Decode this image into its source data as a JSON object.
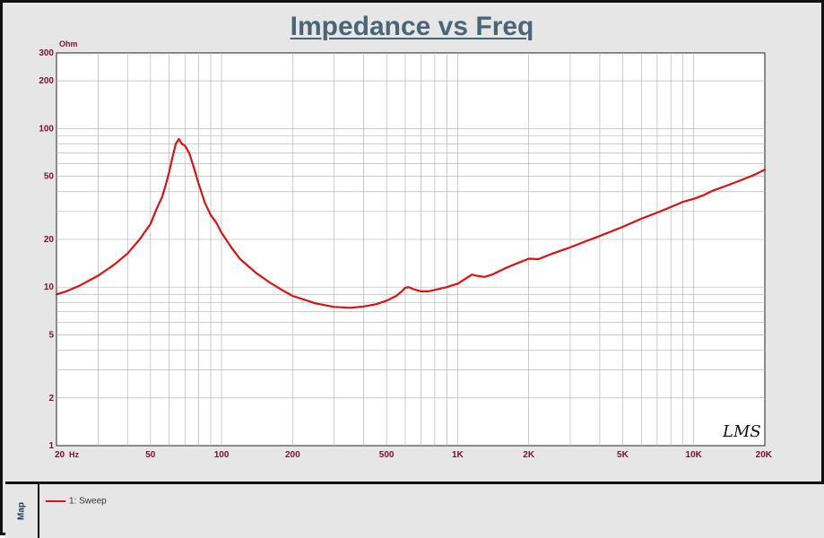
{
  "header": {
    "title": "Impedance vs Freq"
  },
  "brand": {
    "logo_text": "LMS"
  },
  "map_panel": {
    "label": "Map"
  },
  "colors": {
    "trace": "#dd1111",
    "axis_text": "#7a1030",
    "title": "#4a6478",
    "background": "#e6e6e6",
    "plot_background": "#ffffff"
  },
  "chart_data": {
    "type": "line",
    "title": "Impedance vs Freq",
    "xlabel": "Hz",
    "ylabel": "Ohm",
    "x_scale": "log",
    "y_scale": "log",
    "xlim": [
      20,
      20000
    ],
    "ylim": [
      1,
      300
    ],
    "grid": true,
    "legend_position": "bottom panel",
    "x_ticks": [
      {
        "value": 20,
        "label": "20"
      },
      {
        "value": 50,
        "label": "50"
      },
      {
        "value": 100,
        "label": "100"
      },
      {
        "value": 200,
        "label": "200"
      },
      {
        "value": 500,
        "label": "500"
      },
      {
        "value": 1000,
        "label": "1K"
      },
      {
        "value": 2000,
        "label": "2K"
      },
      {
        "value": 5000,
        "label": "5K"
      },
      {
        "value": 10000,
        "label": "10K"
      },
      {
        "value": 20000,
        "label": "20K"
      }
    ],
    "y_ticks": [
      {
        "value": 1,
        "label": "1"
      },
      {
        "value": 2,
        "label": "2"
      },
      {
        "value": 5,
        "label": "5"
      },
      {
        "value": 10,
        "label": "10"
      },
      {
        "value": 20,
        "label": "20"
      },
      {
        "value": 50,
        "label": "50"
      },
      {
        "value": 100,
        "label": "100"
      },
      {
        "value": 200,
        "label": "200"
      },
      {
        "value": 300,
        "label": "300"
      }
    ],
    "series": [
      {
        "name": "1: Sweep",
        "x": [
          20,
          22,
          25,
          30,
          35,
          40,
          45,
          50,
          53,
          56,
          58,
          60,
          62,
          64,
          66,
          68,
          70,
          73,
          76,
          80,
          85,
          90,
          95,
          100,
          110,
          120,
          140,
          160,
          180,
          200,
          250,
          300,
          350,
          400,
          450,
          500,
          550,
          580,
          600,
          620,
          650,
          700,
          750,
          800,
          900,
          1000,
          1100,
          1150,
          1200,
          1300,
          1400,
          1600,
          1800,
          2000,
          2200,
          2500,
          3000,
          3500,
          4000,
          5000,
          6000,
          7000,
          8000,
          9000,
          10000,
          11000,
          12000,
          14000,
          16000,
          18000,
          20000
        ],
        "y": [
          9.0,
          9.4,
          10.2,
          11.8,
          13.8,
          16.3,
          20.0,
          25.0,
          31.0,
          37.0,
          44.0,
          53.0,
          66.0,
          80.0,
          86.0,
          80.0,
          78.0,
          70.0,
          58.0,
          45.0,
          34.0,
          28.5,
          25.5,
          22.0,
          17.8,
          15.0,
          12.3,
          10.7,
          9.6,
          8.8,
          7.9,
          7.5,
          7.4,
          7.55,
          7.8,
          8.2,
          8.8,
          9.4,
          9.9,
          10.0,
          9.7,
          9.4,
          9.4,
          9.6,
          10.0,
          10.5,
          11.5,
          12.0,
          11.8,
          11.6,
          12.0,
          13.2,
          14.2,
          15.1,
          15.0,
          16.2,
          17.8,
          19.5,
          21.0,
          24.0,
          27.0,
          29.5,
          32.0,
          34.5,
          36.0,
          38.0,
          40.5,
          44.0,
          47.5,
          51.0,
          55.0
        ]
      }
    ]
  }
}
